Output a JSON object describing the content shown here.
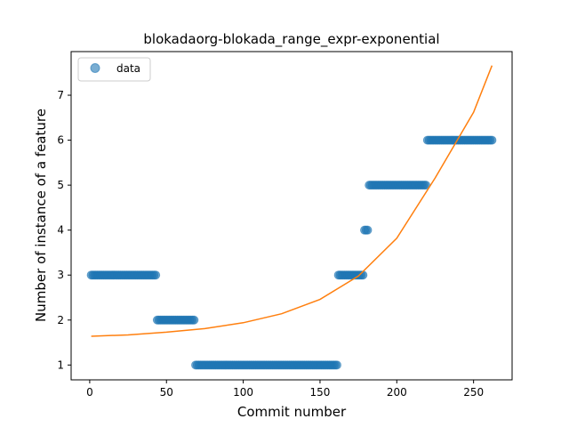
{
  "chart_data": {
    "type": "scatter",
    "title": "blokadaorg-blokada_range_expr-exponential",
    "xlabel": "Commit number",
    "ylabel": "Number of instance of a feature",
    "xlim": [
      -12.1,
      275.1
    ],
    "ylim": [
      0.67,
      7.97
    ],
    "xticks": [
      0,
      50,
      100,
      150,
      200,
      250
    ],
    "yticks": [
      1,
      2,
      3,
      4,
      5,
      6,
      7
    ],
    "legend": {
      "placement": "top-left",
      "entries": [
        "data"
      ]
    },
    "series": [
      {
        "name": "data",
        "kind": "points",
        "color": "#1f77b4",
        "segments": [
          {
            "x_start": 1,
            "x_end": 43,
            "y": 3
          },
          {
            "x_start": 44,
            "x_end": 68,
            "y": 2
          },
          {
            "x_start": 69,
            "x_end": 161,
            "y": 1
          },
          {
            "x_start": 162,
            "x_end": 178,
            "y": 3
          },
          {
            "x_start": 179,
            "x_end": 181,
            "y": 4
          },
          {
            "x_start": 182,
            "x_end": 219,
            "y": 5
          },
          {
            "x_start": 220,
            "x_end": 262,
            "y": 6
          }
        ]
      },
      {
        "kind": "fit-line",
        "color": "#ff7f0e",
        "model": "exponential",
        "x": [
          1,
          25,
          50,
          75,
          100,
          125,
          150,
          175,
          200,
          225,
          250,
          262
        ],
        "y": [
          1.64,
          1.67,
          1.73,
          1.81,
          1.94,
          2.14,
          2.46,
          2.98,
          3.82,
          5.16,
          6.62,
          7.66
        ]
      }
    ]
  }
}
